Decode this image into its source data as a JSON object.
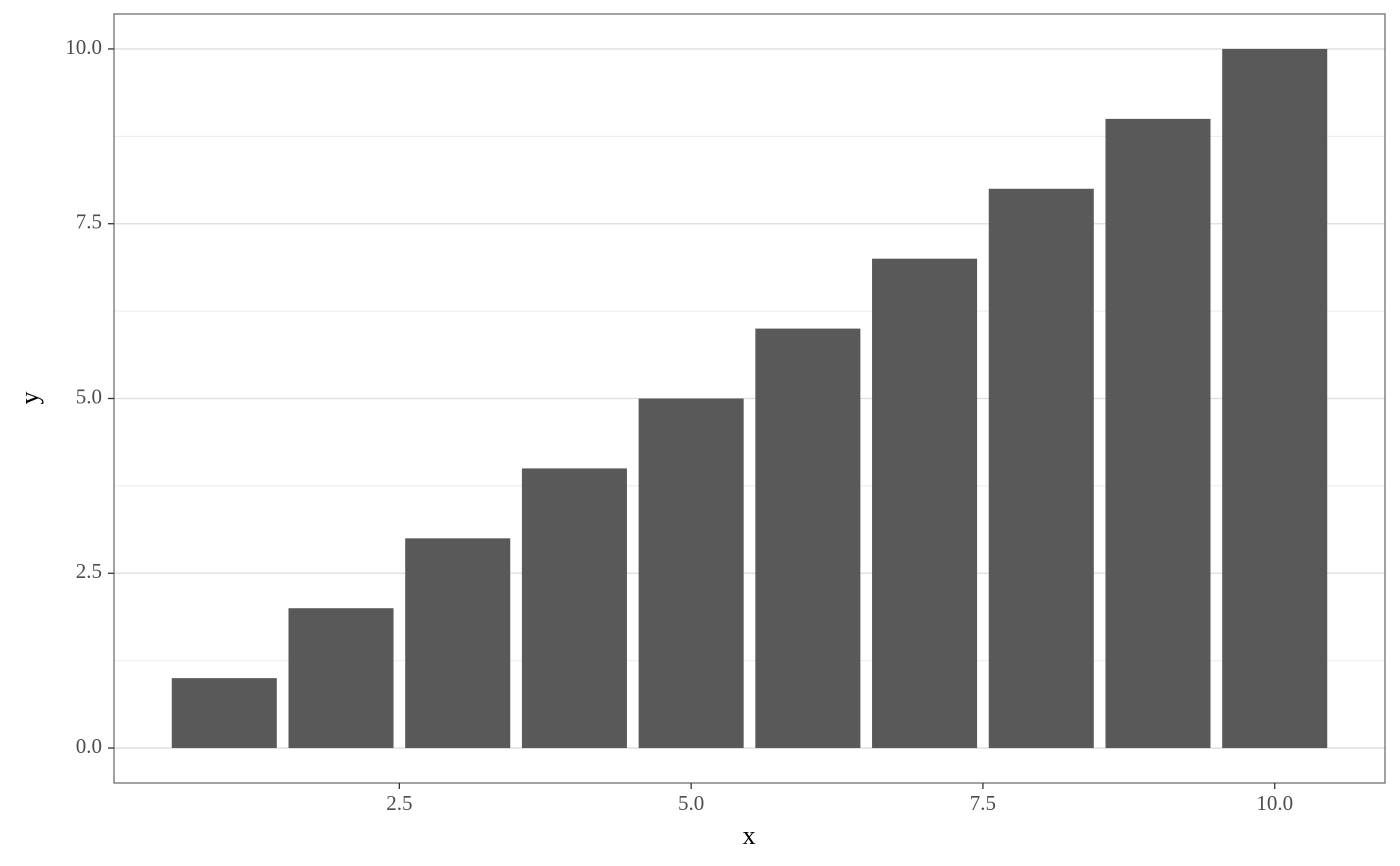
{
  "chart_data": {
    "type": "bar",
    "x": [
      1,
      2,
      3,
      4,
      5,
      6,
      7,
      8,
      9,
      10
    ],
    "values": [
      1,
      2,
      3,
      4,
      5,
      6,
      7,
      8,
      9,
      10
    ],
    "color": "#595959",
    "x_label": "x",
    "y_label": "y",
    "xlim": [
      0.055,
      10.945
    ],
    "ylim": [
      -0.5,
      10.5
    ],
    "xticks": [
      {
        "value": 2.5,
        "label": "2.5"
      },
      {
        "value": 5,
        "label": "5.0"
      },
      {
        "value": 7.5,
        "label": "7.5"
      },
      {
        "value": 10,
        "label": "10.0"
      }
    ],
    "yticks": [
      {
        "value": 0,
        "label": "0.0"
      },
      {
        "value": 2.5,
        "label": "2.5"
      },
      {
        "value": 5,
        "label": "5.0"
      },
      {
        "value": 7.5,
        "label": "7.5"
      },
      {
        "value": 10,
        "label": "10.0"
      }
    ],
    "yminorticks": [
      1.25,
      3.75,
      6.25,
      8.75
    ],
    "grid": true
  }
}
